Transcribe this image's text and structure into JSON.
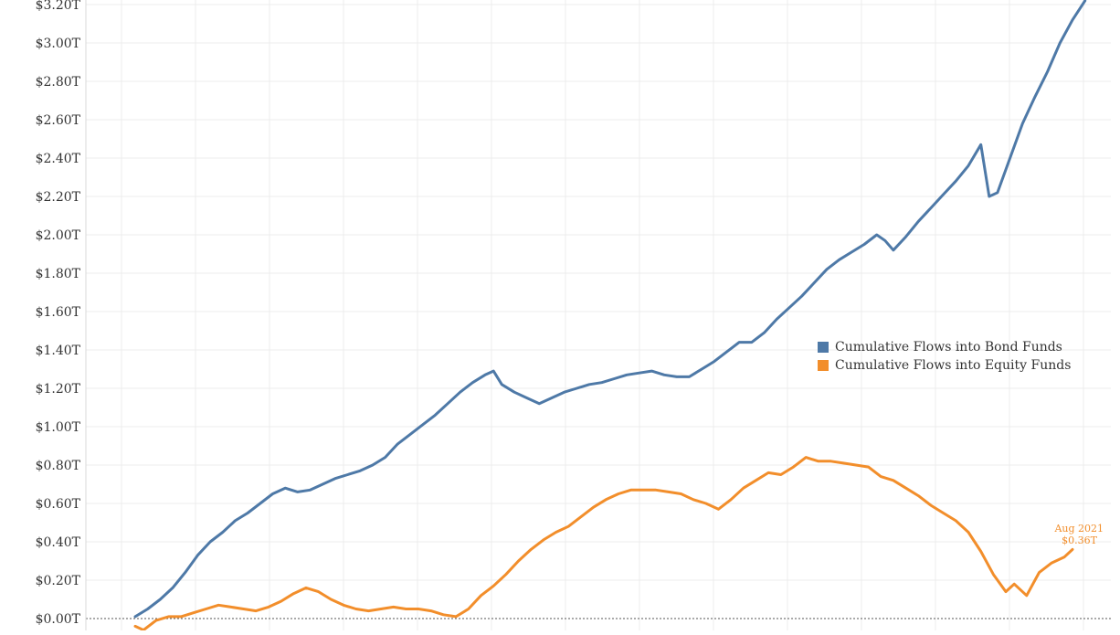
{
  "chart_data": {
    "type": "line",
    "title": "",
    "xlabel": "",
    "ylabel": "",
    "ylim": [
      0,
      3.2
    ],
    "y_tick_values": [
      0,
      0.2,
      0.4,
      0.6,
      0.8,
      1.0,
      1.2,
      1.4,
      1.6,
      1.8,
      2.0,
      2.2,
      2.4,
      2.6,
      2.8,
      3.0,
      3.2
    ],
    "y_tick_labels": [
      "$0.00T",
      "$0.20T",
      "$0.40T",
      "$0.60T",
      "$0.80T",
      "$1.00T",
      "$1.20T",
      "$1.40T",
      "$1.60T",
      "$1.80T",
      "$2.00T",
      "$2.20T",
      "$2.40T",
      "$2.60T",
      "$2.80T",
      "$3.00T",
      "$3.20T"
    ],
    "grid": true,
    "legend_position": "right-middle",
    "series": [
      {
        "name": "Cumulative Flows into Bond Funds",
        "color": "#4e79a7",
        "points": [
          [
            0,
            0.01
          ],
          [
            3,
            0.05
          ],
          [
            6,
            0.1
          ],
          [
            9,
            0.16
          ],
          [
            12,
            0.24
          ],
          [
            15,
            0.33
          ],
          [
            18,
            0.4
          ],
          [
            21,
            0.45
          ],
          [
            24,
            0.51
          ],
          [
            27,
            0.55
          ],
          [
            30,
            0.6
          ],
          [
            33,
            0.65
          ],
          [
            36,
            0.68
          ],
          [
            39,
            0.66
          ],
          [
            42,
            0.67
          ],
          [
            45,
            0.7
          ],
          [
            48,
            0.73
          ],
          [
            51,
            0.75
          ],
          [
            54,
            0.77
          ],
          [
            57,
            0.8
          ],
          [
            60,
            0.84
          ],
          [
            63,
            0.91
          ],
          [
            66,
            0.96
          ],
          [
            69,
            1.01
          ],
          [
            72,
            1.06
          ],
          [
            75,
            1.12
          ],
          [
            78,
            1.18
          ],
          [
            81,
            1.23
          ],
          [
            84,
            1.27
          ],
          [
            86,
            1.29
          ],
          [
            88,
            1.22
          ],
          [
            91,
            1.18
          ],
          [
            94,
            1.15
          ],
          [
            97,
            1.12
          ],
          [
            100,
            1.15
          ],
          [
            103,
            1.18
          ],
          [
            106,
            1.2
          ],
          [
            109,
            1.22
          ],
          [
            112,
            1.23
          ],
          [
            115,
            1.25
          ],
          [
            118,
            1.27
          ],
          [
            121,
            1.28
          ],
          [
            124,
            1.29
          ],
          [
            127,
            1.27
          ],
          [
            130,
            1.26
          ],
          [
            133,
            1.26
          ],
          [
            136,
            1.3
          ],
          [
            139,
            1.34
          ],
          [
            142,
            1.39
          ],
          [
            145,
            1.44
          ],
          [
            148,
            1.44
          ],
          [
            151,
            1.49
          ],
          [
            154,
            1.56
          ],
          [
            157,
            1.62
          ],
          [
            160,
            1.68
          ],
          [
            163,
            1.75
          ],
          [
            166,
            1.82
          ],
          [
            169,
            1.87
          ],
          [
            172,
            1.91
          ],
          [
            175,
            1.95
          ],
          [
            178,
            2.0
          ],
          [
            180,
            1.97
          ],
          [
            182,
            1.92
          ],
          [
            185,
            1.99
          ],
          [
            188,
            2.07
          ],
          [
            191,
            2.14
          ],
          [
            194,
            2.21
          ],
          [
            197,
            2.28
          ],
          [
            200,
            2.36
          ],
          [
            203,
            2.47
          ],
          [
            205,
            2.2
          ],
          [
            207,
            2.22
          ],
          [
            210,
            2.4
          ],
          [
            213,
            2.58
          ],
          [
            216,
            2.72
          ],
          [
            219,
            2.85
          ],
          [
            222,
            3.0
          ],
          [
            225,
            3.12
          ],
          [
            228,
            3.22
          ]
        ]
      },
      {
        "name": "Cumulative Flows into Equity Funds",
        "color": "#f28e2b",
        "points": [
          [
            0,
            -0.04
          ],
          [
            2,
            -0.06
          ],
          [
            5,
            -0.01
          ],
          [
            8,
            0.01
          ],
          [
            11,
            0.01
          ],
          [
            14,
            0.03
          ],
          [
            17,
            0.05
          ],
          [
            20,
            0.07
          ],
          [
            23,
            0.06
          ],
          [
            26,
            0.05
          ],
          [
            29,
            0.04
          ],
          [
            32,
            0.06
          ],
          [
            35,
            0.09
          ],
          [
            38,
            0.13
          ],
          [
            41,
            0.16
          ],
          [
            44,
            0.14
          ],
          [
            47,
            0.1
          ],
          [
            50,
            0.07
          ],
          [
            53,
            0.05
          ],
          [
            56,
            0.04
          ],
          [
            59,
            0.05
          ],
          [
            62,
            0.06
          ],
          [
            65,
            0.05
          ],
          [
            68,
            0.05
          ],
          [
            71,
            0.04
          ],
          [
            74,
            0.02
          ],
          [
            77,
            0.01
          ],
          [
            80,
            0.05
          ],
          [
            83,
            0.12
          ],
          [
            86,
            0.17
          ],
          [
            89,
            0.23
          ],
          [
            92,
            0.3
          ],
          [
            95,
            0.36
          ],
          [
            98,
            0.41
          ],
          [
            101,
            0.45
          ],
          [
            104,
            0.48
          ],
          [
            107,
            0.53
          ],
          [
            110,
            0.58
          ],
          [
            113,
            0.62
          ],
          [
            116,
            0.65
          ],
          [
            119,
            0.67
          ],
          [
            122,
            0.67
          ],
          [
            125,
            0.67
          ],
          [
            128,
            0.66
          ],
          [
            131,
            0.65
          ],
          [
            134,
            0.62
          ],
          [
            137,
            0.6
          ],
          [
            140,
            0.57
          ],
          [
            143,
            0.62
          ],
          [
            146,
            0.68
          ],
          [
            149,
            0.72
          ],
          [
            152,
            0.76
          ],
          [
            155,
            0.75
          ],
          [
            158,
            0.79
          ],
          [
            161,
            0.84
          ],
          [
            164,
            0.82
          ],
          [
            167,
            0.82
          ],
          [
            170,
            0.81
          ],
          [
            173,
            0.8
          ],
          [
            176,
            0.79
          ],
          [
            179,
            0.74
          ],
          [
            182,
            0.72
          ],
          [
            185,
            0.68
          ],
          [
            188,
            0.64
          ],
          [
            191,
            0.59
          ],
          [
            194,
            0.55
          ],
          [
            197,
            0.51
          ],
          [
            200,
            0.45
          ],
          [
            203,
            0.35
          ],
          [
            206,
            0.23
          ],
          [
            209,
            0.14
          ],
          [
            211,
            0.18
          ],
          [
            214,
            0.12
          ],
          [
            217,
            0.24
          ],
          [
            220,
            0.29
          ],
          [
            223,
            0.32
          ],
          [
            225,
            0.36
          ]
        ]
      }
    ],
    "annotation": {
      "date": "Aug 2021",
      "value_label": "$0.36T",
      "series": "Cumulative Flows into Equity Funds"
    }
  }
}
